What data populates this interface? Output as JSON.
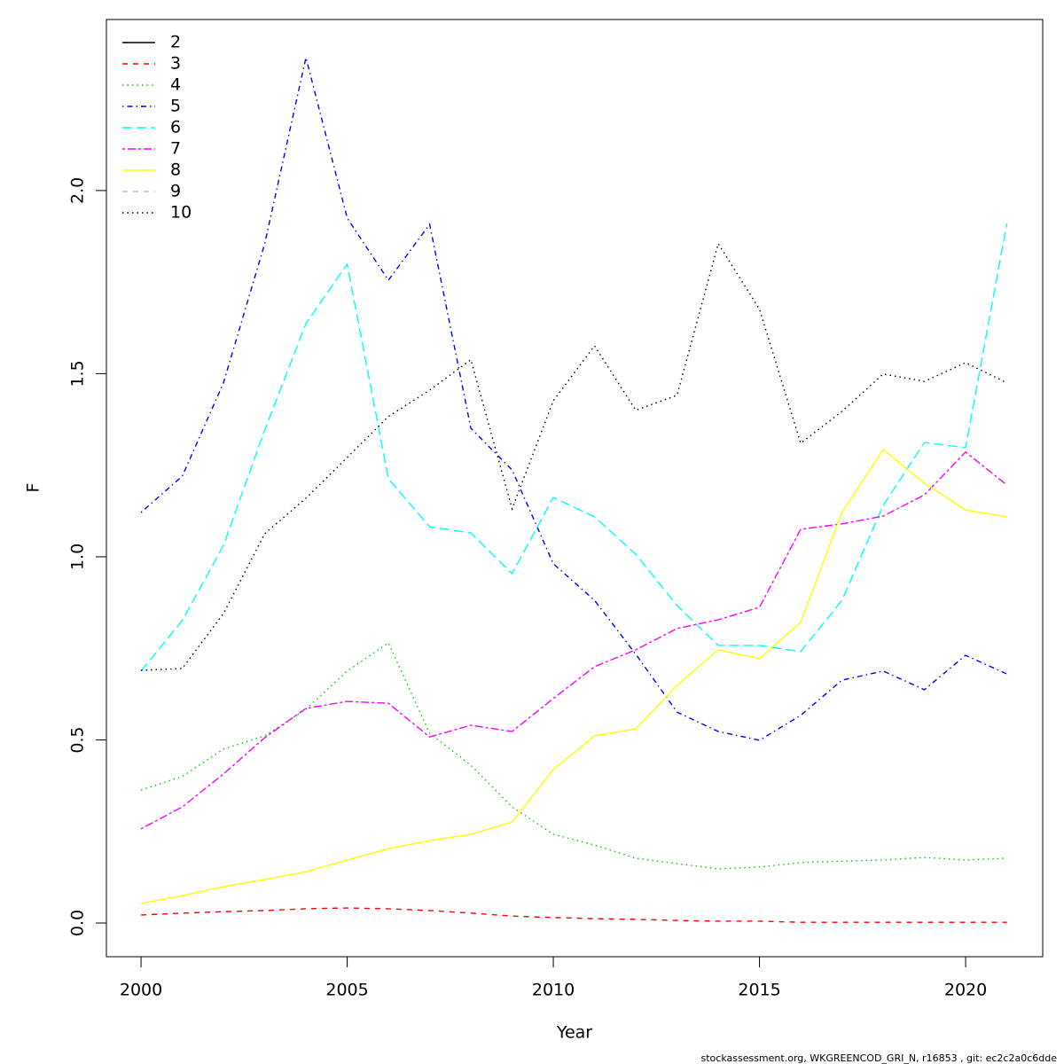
{
  "chart_data": {
    "type": "line",
    "xlabel": "Year",
    "ylabel": "F",
    "caption": "stockassessment.org, WKGREENCOD_GRI_N, r16853 , git: ec2c2a0c6dde",
    "x": [
      2000,
      2001,
      2002,
      2003,
      2004,
      2005,
      2006,
      2007,
      2008,
      2009,
      2010,
      2011,
      2012,
      2013,
      2014,
      2015,
      2016,
      2017,
      2018,
      2019,
      2020,
      2021
    ],
    "xlim": [
      1999.16,
      2021.87
    ],
    "xticks": [
      2000,
      2005,
      2010,
      2015,
      2020
    ],
    "ylim": [
      -0.092,
      2.467
    ],
    "yticks": [
      {
        "value": 0,
        "label": "0.0"
      },
      0.5,
      {
        "value": 1,
        "label": "1.0"
      },
      1.5,
      {
        "value": 2,
        "label": "2.0"
      }
    ],
    "legend": "top-left",
    "series": [
      {
        "name": "2",
        "color": "#000000",
        "linetype": "solid",
        "values": [
          null,
          null,
          null,
          null,
          null,
          null,
          null,
          null,
          null,
          null,
          null,
          null,
          null,
          null,
          null,
          null,
          null,
          null,
          null,
          null,
          null,
          null
        ]
      },
      {
        "name": "3",
        "color": "#ff0000",
        "linetype": "dashed",
        "values": [
          0.022,
          0.027,
          0.031,
          0.034,
          0.039,
          0.041,
          0.039,
          0.034,
          0.027,
          0.019,
          0.015,
          0.012,
          0.01,
          0.007,
          0.005,
          0.005,
          0.002,
          0.002,
          0.002,
          0.002,
          0.002,
          0.002
        ]
      },
      {
        "name": "4",
        "color": "#00cd00",
        "linetype": "dotted",
        "values": [
          0.363,
          0.4,
          0.475,
          0.511,
          0.584,
          0.688,
          0.765,
          0.518,
          0.431,
          0.317,
          0.242,
          0.213,
          0.177,
          0.162,
          0.148,
          0.153,
          0.165,
          0.169,
          0.172,
          0.179,
          0.172,
          0.177
        ]
      },
      {
        "name": "5",
        "color": "#0000ff",
        "linetype": "dotdash",
        "values": [
          1.121,
          1.22,
          1.475,
          1.855,
          2.363,
          1.925,
          1.755,
          1.908,
          1.351,
          1.237,
          0.981,
          0.881,
          0.734,
          0.576,
          0.523,
          0.499,
          0.567,
          0.663,
          0.688,
          0.637,
          0.731,
          0.68
        ]
      },
      {
        "name": "6",
        "color": "#00ffff",
        "linetype": "longdash",
        "values": [
          0.688,
          0.826,
          1.031,
          1.346,
          1.637,
          1.799,
          1.213,
          1.082,
          1.065,
          0.954,
          1.162,
          1.109,
          1.007,
          0.867,
          0.758,
          0.758,
          0.741,
          0.881,
          1.14,
          1.312,
          1.298,
          1.91
        ]
      },
      {
        "name": "7",
        "color": "#ff00ff",
        "linetype": "twodash",
        "values": [
          0.257,
          0.317,
          0.407,
          0.506,
          0.586,
          0.605,
          0.6,
          0.508,
          0.54,
          0.523,
          0.613,
          0.7,
          0.746,
          0.804,
          0.828,
          0.862,
          1.075,
          1.09,
          1.111,
          1.169,
          1.286,
          1.196
        ]
      },
      {
        "name": "8",
        "color": "#ffff00",
        "linetype": "solid",
        "values": [
          0.053,
          0.075,
          0.099,
          0.119,
          0.14,
          0.172,
          0.203,
          0.225,
          0.242,
          0.276,
          0.419,
          0.511,
          0.53,
          0.649,
          0.746,
          0.722,
          0.821,
          1.121,
          1.293,
          1.201,
          1.128,
          1.109
        ]
      },
      {
        "name": "9",
        "color": "#bebebe",
        "linetype": "dashed",
        "values": [
          null,
          null,
          null,
          null,
          null,
          null,
          null,
          null,
          null,
          null,
          null,
          null,
          null,
          null,
          null,
          null,
          null,
          null,
          null,
          null,
          null,
          null
        ]
      },
      {
        "name": "10",
        "color": "#000000",
        "linetype": "dotted",
        "values": [
          0.69,
          0.695,
          0.845,
          1.063,
          1.16,
          1.271,
          1.383,
          1.455,
          1.538,
          1.131,
          1.426,
          1.576,
          1.4,
          1.441,
          1.855,
          1.676,
          1.31,
          1.397,
          1.499,
          1.479,
          1.53,
          1.475
        ]
      }
    ]
  }
}
